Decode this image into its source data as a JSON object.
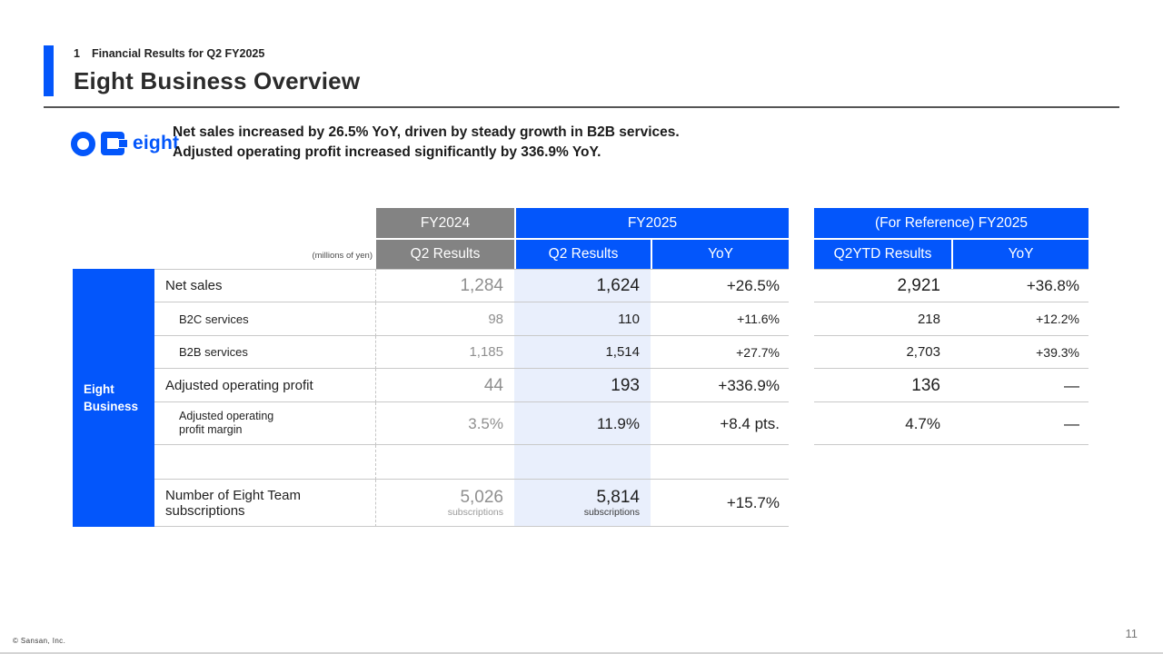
{
  "slide": {
    "eyebrow_number": "1",
    "eyebrow_text": "Financial Results for Q2 FY2025",
    "title": "Eight Business Overview",
    "copyright": "© Sansan, Inc.",
    "page_number": "11"
  },
  "logo": {
    "wordmark": "eight"
  },
  "message": {
    "line1": "Net sales increased by 26.5% YoY, driven by steady growth in B2B services.",
    "line2": "Adjusted operating profit increased significantly by 336.9% YoY."
  },
  "table": {
    "units_note": "(millions of yen)",
    "sidebar_label": "Eight\nBusiness",
    "left": {
      "group_fy2024": "FY2024",
      "group_fy2025": "FY2025",
      "col_fy2024_q2": "Q2 Results",
      "col_fy2025_q2": "Q2 Results",
      "col_yoy": "YoY"
    },
    "right": {
      "group_header": "(For Reference) FY2025",
      "col_q2ytd": "Q2YTD Results",
      "col_yoy": "YoY"
    },
    "rows": [
      {
        "label": "Net sales",
        "fy2024": "1,284",
        "fy2025": "1,624",
        "yoy": "+26.5%",
        "ytd": "2,921",
        "ytd_yoy": "+36.8%"
      },
      {
        "label": "B2C services",
        "fy2024": "98",
        "fy2025": "110",
        "yoy": "+11.6%",
        "ytd": "218",
        "ytd_yoy": "+12.2%"
      },
      {
        "label": "B2B services",
        "fy2024": "1,185",
        "fy2025": "1,514",
        "yoy": "+27.7%",
        "ytd": "2,703",
        "ytd_yoy": "+39.3%"
      },
      {
        "label": "Adjusted operating profit",
        "fy2024": "44",
        "fy2025": "193",
        "yoy": "+336.9%",
        "ytd": "136",
        "ytd_yoy": "—"
      },
      {
        "label": "Adjusted operating\nprofit margin",
        "fy2024": "3.5%",
        "fy2025": "11.9%",
        "yoy": "+8.4 pts.",
        "ytd": "4.7%",
        "ytd_yoy": "—"
      }
    ],
    "subscription_row": {
      "label": "Number of Eight Team\nsubscriptions",
      "fy2024_value": "5,026",
      "fy2024_unit": "subscriptions",
      "fy2025_value": "5,814",
      "fy2025_unit": "subscriptions",
      "yoy": "+15.7%"
    }
  },
  "colors": {
    "accent_blue": "#0356fb",
    "header_gray": "#838383",
    "highlight_blue": "#e9effc"
  }
}
